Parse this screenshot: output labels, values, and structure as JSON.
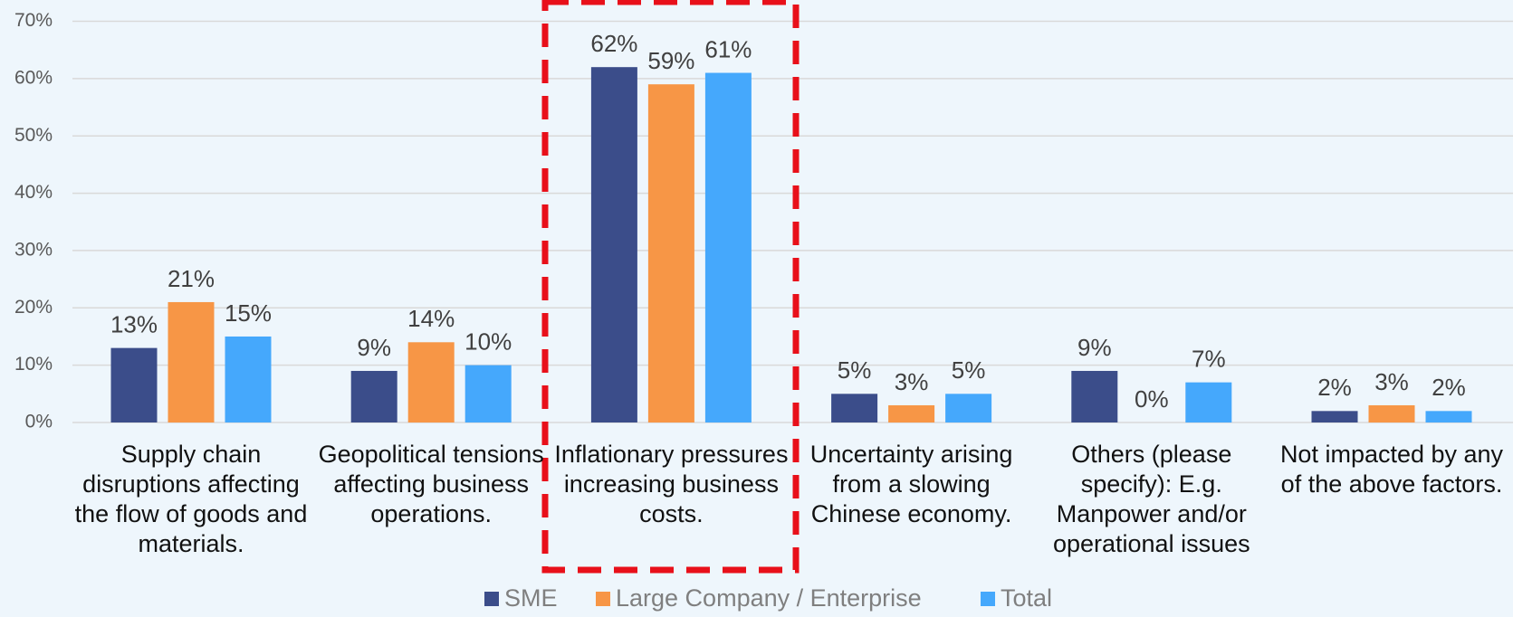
{
  "chart_data": {
    "type": "bar",
    "categories": [
      "Supply chain disruptions affecting the flow of goods and materials.",
      "Geopolitical tensions affecting business operations.",
      "Inflationary pressures increasing business costs.",
      "Uncertainty arising from a slowing Chinese economy.",
      "Others (please specify): E.g. Manpower and/or operational issues",
      "Not impacted by any of the above factors."
    ],
    "series": [
      {
        "name": "SME",
        "color": "#3b4d8a",
        "values": [
          13,
          9,
          62,
          5,
          9,
          2
        ],
        "value_labels": [
          "13%",
          "9%",
          "62%",
          "5%",
          "9%",
          "2%"
        ]
      },
      {
        "name": "Large Company / Enterprise",
        "color": "#f79646",
        "values": [
          21,
          14,
          59,
          3,
          0,
          3
        ],
        "value_labels": [
          "21%",
          "14%",
          "59%",
          "3%",
          "0%",
          "3%"
        ]
      },
      {
        "name": "Total",
        "color": "#45a8fc",
        "values": [
          15,
          10,
          61,
          5,
          7,
          2
        ],
        "value_labels": [
          "15%",
          "10%",
          "61%",
          "5%",
          "7%",
          "2%"
        ]
      }
    ],
    "ylim": [
      0,
      70
    ],
    "yticks": [
      {
        "value": 0,
        "label": "0%"
      },
      {
        "value": 10,
        "label": "10%"
      },
      {
        "value": 20,
        "label": "20%"
      },
      {
        "value": 30,
        "label": "30%"
      },
      {
        "value": 40,
        "label": "40%"
      },
      {
        "value": 50,
        "label": "50%"
      },
      {
        "value": 60,
        "label": "60%"
      },
      {
        "value": 70,
        "label": "70%"
      }
    ],
    "grid": true,
    "legend": "bottom"
  }
}
